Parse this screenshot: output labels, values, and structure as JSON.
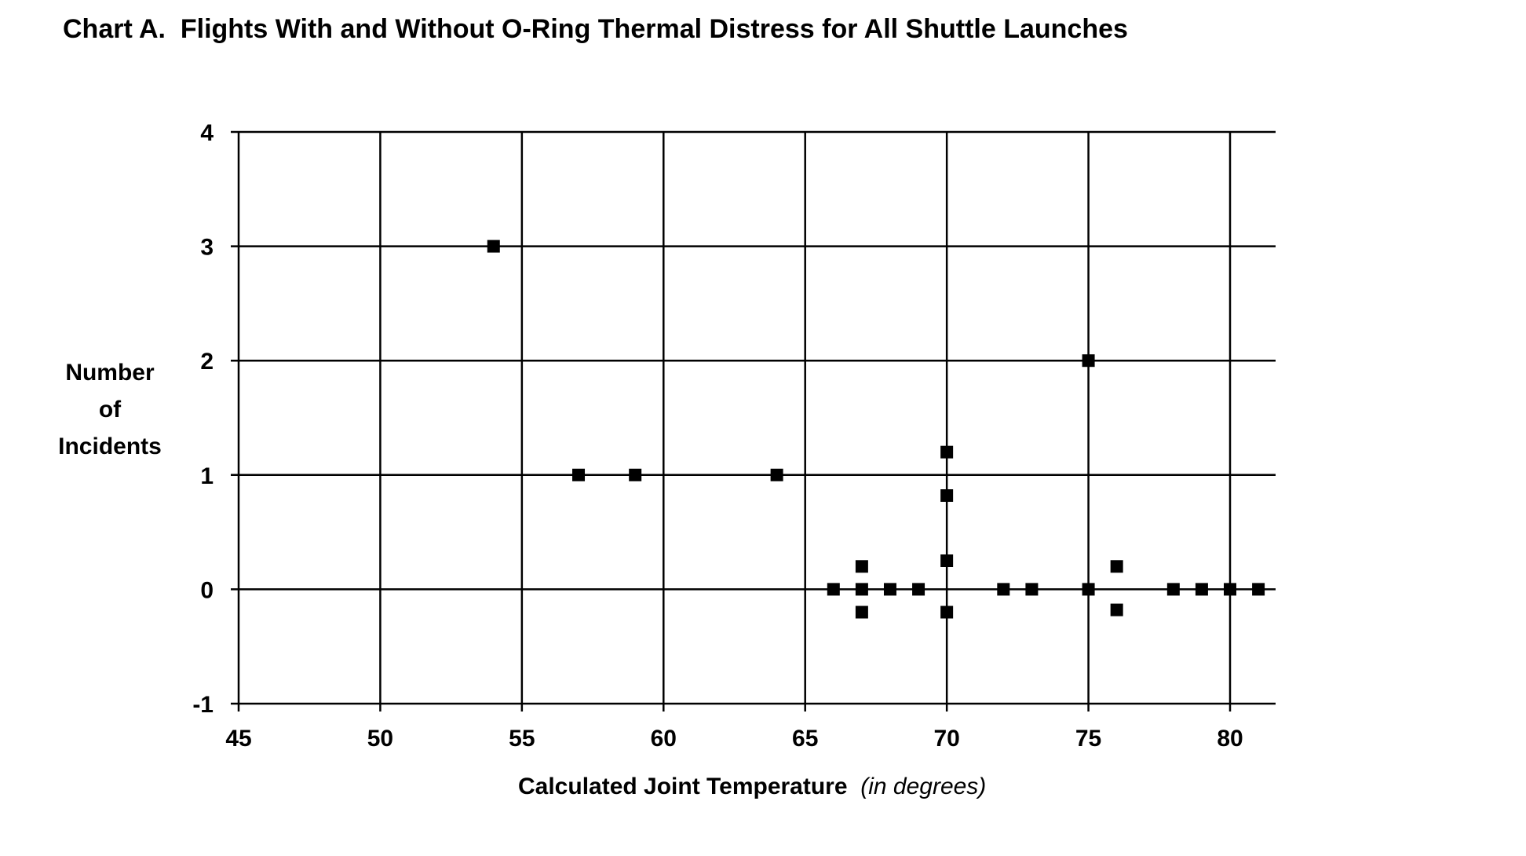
{
  "chart_data": {
    "type": "scatter",
    "title": "Chart A.  Flights With and Without O-Ring Thermal Distress for All Shuttle Launches",
    "xlabel": "Calculated Joint Temperature",
    "xlabel_note": "(in degrees)",
    "ylabel_lines": [
      "Number",
      "of",
      "Incidents"
    ],
    "xlim": [
      45,
      81.5
    ],
    "ylim": [
      -1,
      4
    ],
    "xticks": [
      45,
      50,
      55,
      60,
      65,
      70,
      75,
      80
    ],
    "yticks": [
      -1,
      0,
      1,
      2,
      3,
      4
    ],
    "grid": true,
    "marker": "square",
    "colors": {
      "marker": "#000000",
      "grid": "#000000"
    },
    "points": [
      {
        "x": 54,
        "y": 3
      },
      {
        "x": 57,
        "y": 1
      },
      {
        "x": 59,
        "y": 1
      },
      {
        "x": 64,
        "y": 1
      },
      {
        "x": 66,
        "y": 0
      },
      {
        "x": 67,
        "y": 0.2
      },
      {
        "x": 67,
        "y": 0
      },
      {
        "x": 67,
        "y": -0.2
      },
      {
        "x": 68,
        "y": 0
      },
      {
        "x": 69,
        "y": 0
      },
      {
        "x": 70,
        "y": 1.2
      },
      {
        "x": 70,
        "y": 0.82
      },
      {
        "x": 70,
        "y": 0.25
      },
      {
        "x": 70,
        "y": -0.2
      },
      {
        "x": 72,
        "y": 0
      },
      {
        "x": 73,
        "y": 0
      },
      {
        "x": 75,
        "y": 2
      },
      {
        "x": 75,
        "y": 0
      },
      {
        "x": 76,
        "y": 0.2
      },
      {
        "x": 76,
        "y": -0.18
      },
      {
        "x": 78,
        "y": 0
      },
      {
        "x": 79,
        "y": 0
      },
      {
        "x": 80,
        "y": 0
      },
      {
        "x": 81,
        "y": 0
      }
    ]
  }
}
